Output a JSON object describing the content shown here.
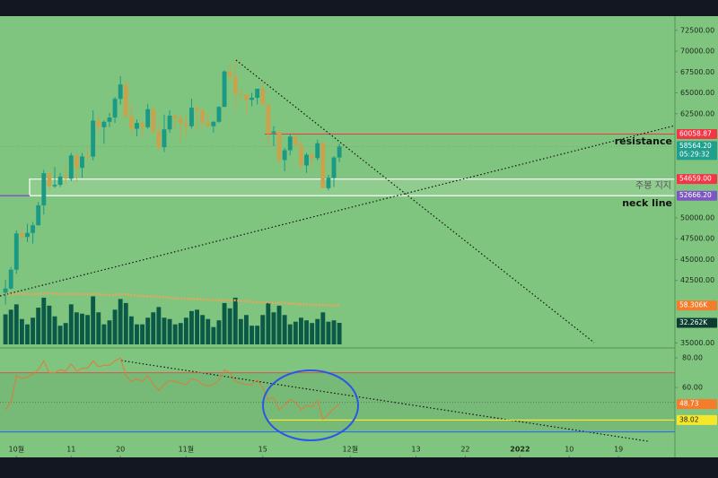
{
  "chart_data": {
    "type": "candlestick",
    "open": [
      41030,
      41520,
      43790,
      48140,
      47710,
      48200,
      49110,
      51510,
      55360,
      53800,
      53970,
      54960,
      54690,
      57490,
      56000,
      57370,
      57350,
      61670,
      60880,
      61530,
      62040,
      64280,
      66000,
      62210,
      60690,
      61390,
      60890,
      63040,
      60360,
      58480,
      60620,
      62270,
      61890,
      61320,
      61000,
      63220,
      62940,
      61450,
      61000,
      61530,
      63320,
      67570,
      66970,
      64880,
      64770,
      64160,
      64410,
      65500,
      63600,
      60160,
      60370,
      56940,
      58120,
      59750,
      58740,
      56290,
      57570,
      57170,
      58960,
      53560,
      54810,
      57250
    ],
    "high": [
      42600,
      44100,
      48500,
      48950,
      49300,
      49500,
      51900,
      55750,
      55300,
      56100,
      55400,
      56500,
      57800,
      57700,
      57800,
      58500,
      62900,
      62300,
      61700,
      62600,
      64500,
      67000,
      66600,
      63700,
      61800,
      61500,
      63700,
      63300,
      61400,
      62400,
      62900,
      62300,
      62400,
      62400,
      64300,
      63500,
      63100,
      62600,
      61600,
      63400,
      67700,
      68500,
      69000,
      65500,
      65000,
      65000,
      65500,
      66300,
      63600,
      61000,
      60500,
      58400,
      60000,
      60000,
      59300,
      57800,
      57800,
      59400,
      59200,
      55200,
      57400,
      58900
    ],
    "low": [
      39600,
      41400,
      43300,
      47400,
      47100,
      46900,
      49100,
      50400,
      53400,
      53600,
      53700,
      54100,
      54400,
      54300,
      54800,
      56900,
      56900,
      60200,
      58900,
      60900,
      61400,
      63600,
      62000,
      60100,
      59800,
      59600,
      60700,
      60100,
      58100,
      57900,
      60200,
      60700,
      59000,
      59600,
      60700,
      60400,
      60700,
      60800,
      60200,
      61400,
      63300,
      66400,
      63000,
      64100,
      62300,
      63400,
      63600,
      63500,
      58600,
      58600,
      56500,
      55600,
      57500,
      58600,
      55700,
      55400,
      55900,
      56900,
      53500,
      53300,
      53700,
      56700
    ],
    "close": [
      41520,
      43790,
      48140,
      47710,
      48200,
      49110,
      51510,
      55360,
      53800,
      53970,
      54960,
      54690,
      57490,
      56000,
      57370,
      57350,
      61670,
      60880,
      61530,
      62040,
      64280,
      66000,
      62210,
      60690,
      61390,
      60890,
      63040,
      60360,
      58480,
      60620,
      62270,
      61890,
      61320,
      61000,
      63220,
      62940,
      61450,
      61000,
      61530,
      63320,
      67570,
      66970,
      64880,
      64770,
      64160,
      64410,
      65500,
      63600,
      60160,
      60370,
      56940,
      58120,
      59750,
      58740,
      56290,
      57570,
      57170,
      58960,
      53560,
      54810,
      57250,
      58564.2
    ],
    "up_color": "#1a9a84",
    "down_color": "#c9a24e",
    "ylim": [
      34400,
      74200
    ],
    "xlim": [
      -1,
      122.3
    ],
    "yticks": [
      {
        "value": 72500,
        "label": "72500.00"
      },
      {
        "value": 70000,
        "label": "70000.00"
      },
      {
        "value": 67500,
        "label": "67500.00"
      },
      {
        "value": 65000,
        "label": "65000.00"
      },
      {
        "value": 62500,
        "label": "62500.00"
      },
      {
        "value": 50000,
        "label": "50000.00"
      },
      {
        "value": 47500,
        "label": "47500.00"
      },
      {
        "value": 45000,
        "label": "45000.00"
      },
      {
        "value": 42500,
        "label": "42500.00"
      },
      {
        "value": 35000,
        "label": "35000.00"
      }
    ],
    "xticks": [
      {
        "value": 2,
        "label": "10월"
      },
      {
        "value": 12,
        "label": "11"
      },
      {
        "value": 21,
        "label": "20"
      },
      {
        "value": 33,
        "label": "11월"
      },
      {
        "value": 47,
        "label": "15"
      },
      {
        "value": 63,
        "label": "12월"
      },
      {
        "value": 75,
        "label": "13"
      },
      {
        "value": 84,
        "label": "22"
      },
      {
        "value": 94,
        "label": "2022"
      },
      {
        "value": 103,
        "label": "10"
      },
      {
        "value": 112,
        "label": "19"
      }
    ],
    "price_labels": [
      {
        "value": 60058.87,
        "label": "60058.87",
        "color": "#f23645"
      },
      {
        "value": 58564.2,
        "label": "58564.20",
        "color": "#1f9f8e",
        "countdown": "05:29:32"
      },
      {
        "value": 54659,
        "label": "54659.00",
        "color": "#f23645"
      },
      {
        "value": 52666.2,
        "label": "52666.20",
        "color": "#7e57c2"
      }
    ],
    "annotations": {
      "resistance": "resistance",
      "neck_line": "neck line",
      "support": "주봉 지지"
    },
    "volume": {
      "values": [
        45,
        52,
        60,
        38,
        30,
        40,
        55,
        70,
        58,
        42,
        28,
        32,
        60,
        48,
        46,
        44,
        72,
        48,
        30,
        36,
        52,
        68,
        62,
        42,
        30,
        30,
        40,
        48,
        56,
        40,
        38,
        30,
        32,
        40,
        50,
        52,
        44,
        38,
        26,
        36,
        62,
        54,
        70,
        38,
        44,
        28,
        28,
        44,
        62,
        48,
        58,
        44,
        30,
        34,
        40,
        36,
        32,
        38,
        48,
        34,
        36,
        32.262
      ],
      "last_label": "32.262K",
      "color": "#0b5a48",
      "ma": [
        75,
        75,
        76,
        76,
        75,
        75,
        76,
        76,
        77,
        76,
        75,
        75,
        76,
        76,
        75,
        75,
        76,
        75,
        74,
        74,
        74,
        75,
        75,
        74,
        73,
        72,
        72,
        72,
        71,
        71,
        70,
        69,
        69,
        68,
        68,
        68,
        67,
        67,
        66,
        66,
        66,
        66,
        66,
        65,
        65,
        64,
        63,
        63,
        63,
        62,
        62,
        62,
        61,
        61,
        60,
        60,
        59,
        59,
        59,
        58.5,
        58.4,
        58.306
      ],
      "ma_last_label": "58.306K",
      "ma_color": "#e8a55a"
    },
    "rsi": {
      "values": [
        45,
        50,
        68,
        66,
        67,
        69,
        72,
        78,
        70,
        70,
        72,
        71,
        76,
        71,
        73,
        73,
        78,
        74,
        75,
        75,
        78,
        80,
        68,
        64,
        66,
        64,
        68,
        62,
        58,
        62,
        65,
        64,
        63,
        62,
        66,
        65,
        62,
        61,
        62,
        65,
        72,
        70,
        64,
        63,
        62,
        62,
        65,
        60,
        52,
        53,
        45,
        48,
        52,
        50,
        45,
        48,
        47,
        51,
        38.5,
        42,
        46,
        48.73
      ],
      "color": "#e07b39",
      "ylim": [
        14,
        85.5
      ],
      "yticks": [
        {
          "value": 80,
          "label": "80.00"
        },
        {
          "value": 60,
          "label": "60.00"
        }
      ],
      "levels": [
        70,
        50,
        30
      ],
      "support": {
        "value": 38.02,
        "label": "38.02"
      }
    }
  }
}
